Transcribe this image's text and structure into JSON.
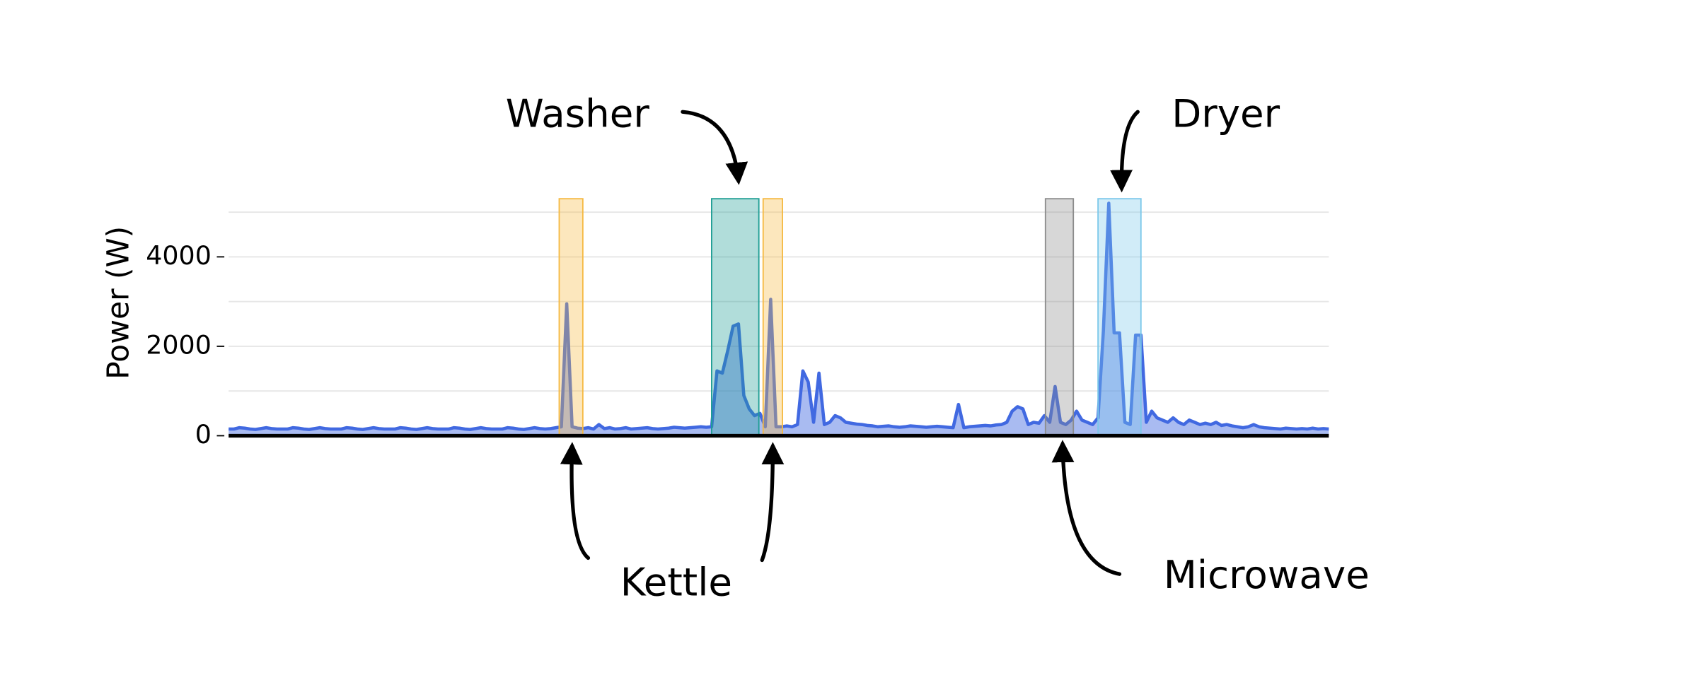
{
  "chart_data": {
    "type": "line",
    "ylabel": "Power (W)",
    "values": [
      150,
      150,
      180,
      170,
      150,
      140,
      160,
      180,
      160,
      150,
      150,
      150,
      180,
      170,
      150,
      140,
      160,
      180,
      160,
      150,
      150,
      150,
      180,
      170,
      150,
      140,
      160,
      180,
      160,
      150,
      150,
      150,
      180,
      170,
      150,
      140,
      160,
      180,
      160,
      150,
      150,
      150,
      180,
      170,
      150,
      140,
      160,
      180,
      160,
      150,
      150,
      150,
      180,
      170,
      150,
      140,
      160,
      180,
      160,
      150,
      160,
      180,
      200,
      2950,
      200,
      170,
      160,
      180,
      150,
      250,
      160,
      180,
      150,
      160,
      180,
      150,
      160,
      170,
      180,
      160,
      150,
      160,
      170,
      190,
      180,
      170,
      180,
      190,
      200,
      190,
      200,
      1450,
      1400,
      1900,
      2450,
      2500,
      900,
      600,
      450,
      500,
      200,
      3050,
      200,
      200,
      220,
      200,
      250,
      1450,
      1200,
      300,
      1400,
      250,
      300,
      450,
      400,
      300,
      280,
      260,
      250,
      230,
      220,
      200,
      210,
      220,
      200,
      190,
      200,
      220,
      210,
      200,
      190,
      200,
      210,
      200,
      190,
      180,
      700,
      180,
      200,
      210,
      220,
      230,
      220,
      240,
      250,
      300,
      550,
      650,
      600,
      250,
      300,
      280,
      450,
      300,
      1100,
      300,
      250,
      350,
      550,
      350,
      300,
      250,
      400,
      2350,
      5200,
      2300,
      2300,
      300,
      250,
      2250,
      2250,
      300,
      550,
      400,
      350,
      300,
      400,
      300,
      250,
      350,
      300,
      250,
      280,
      250,
      300,
      230,
      250,
      220,
      200,
      180,
      200,
      250,
      200,
      180,
      170,
      160,
      150,
      170,
      160,
      150,
      160,
      150,
      170,
      150,
      160,
      150
    ],
    "color": "#4169e1",
    "ylim": [
      0,
      5300
    ],
    "yticks": [
      0,
      2000,
      4000
    ],
    "ygrid": [
      1000,
      2000,
      3000,
      4000,
      5000
    ],
    "bands": [
      {
        "x0": 61.6,
        "x1": 66,
        "color": "#f5b942"
      },
      {
        "x0": 90,
        "x1": 98.8,
        "color": "#1f9e94"
      },
      {
        "x0": 99.6,
        "x1": 103.2,
        "color": "#f5b942"
      },
      {
        "x0": 152.2,
        "x1": 157.4,
        "color": "#8c8c8c"
      },
      {
        "x0": 162,
        "x1": 170,
        "color": "#7cc8ea"
      }
    ],
    "annotations": [
      "Washer",
      "Dryer",
      "Kettle",
      "Microwave"
    ]
  }
}
